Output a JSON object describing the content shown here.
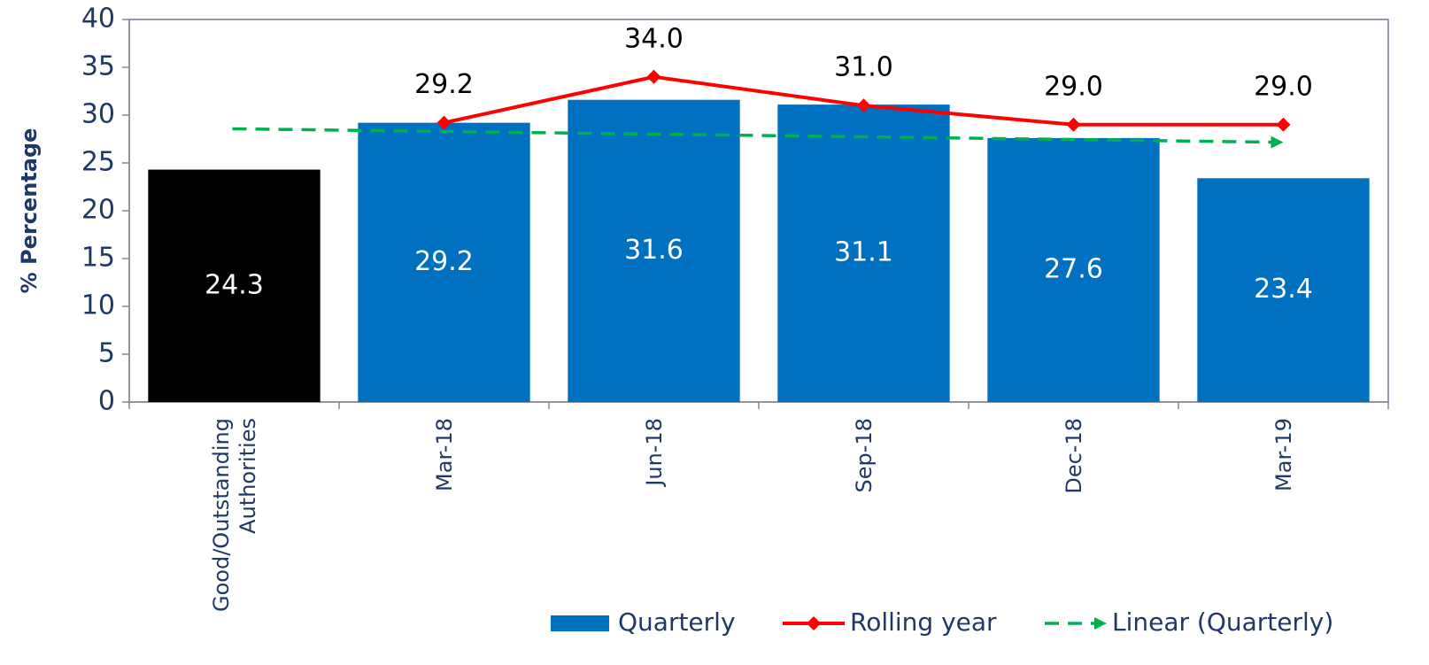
{
  "chart_data": {
    "type": "bar",
    "y_label": "% Percentage",
    "categories": [
      "Good/Outstanding Authorities",
      "Mar-18",
      "Jun-18",
      "Sep-18",
      "Dec-18",
      "Mar-19"
    ],
    "series": [
      {
        "name": "Quarterly",
        "type": "bar",
        "color": "#0070c0",
        "colors": [
          "#000000",
          "#0070c0",
          "#0070c0",
          "#0070c0",
          "#0070c0",
          "#0070c0"
        ],
        "values": [
          24.3,
          29.2,
          31.6,
          31.1,
          27.6,
          23.4
        ]
      },
      {
        "name": "Rolling year",
        "type": "line",
        "color": "#ff0000",
        "values": [
          null,
          29.2,
          34.0,
          31.0,
          29.0,
          29.0
        ],
        "value_labels": [
          null,
          "29.2",
          "34.0",
          "31.0",
          "29.0",
          "29.0"
        ]
      },
      {
        "name": "Linear (Quarterly)",
        "type": "trend",
        "color": "#00b050",
        "values": [
          28.57,
          28.29,
          28.01,
          27.73,
          27.45,
          27.17
        ]
      }
    ],
    "ylim": [
      0,
      40
    ],
    "yticks": [
      0,
      5,
      10,
      15,
      20,
      25,
      30,
      35,
      40
    ],
    "grid": false
  }
}
